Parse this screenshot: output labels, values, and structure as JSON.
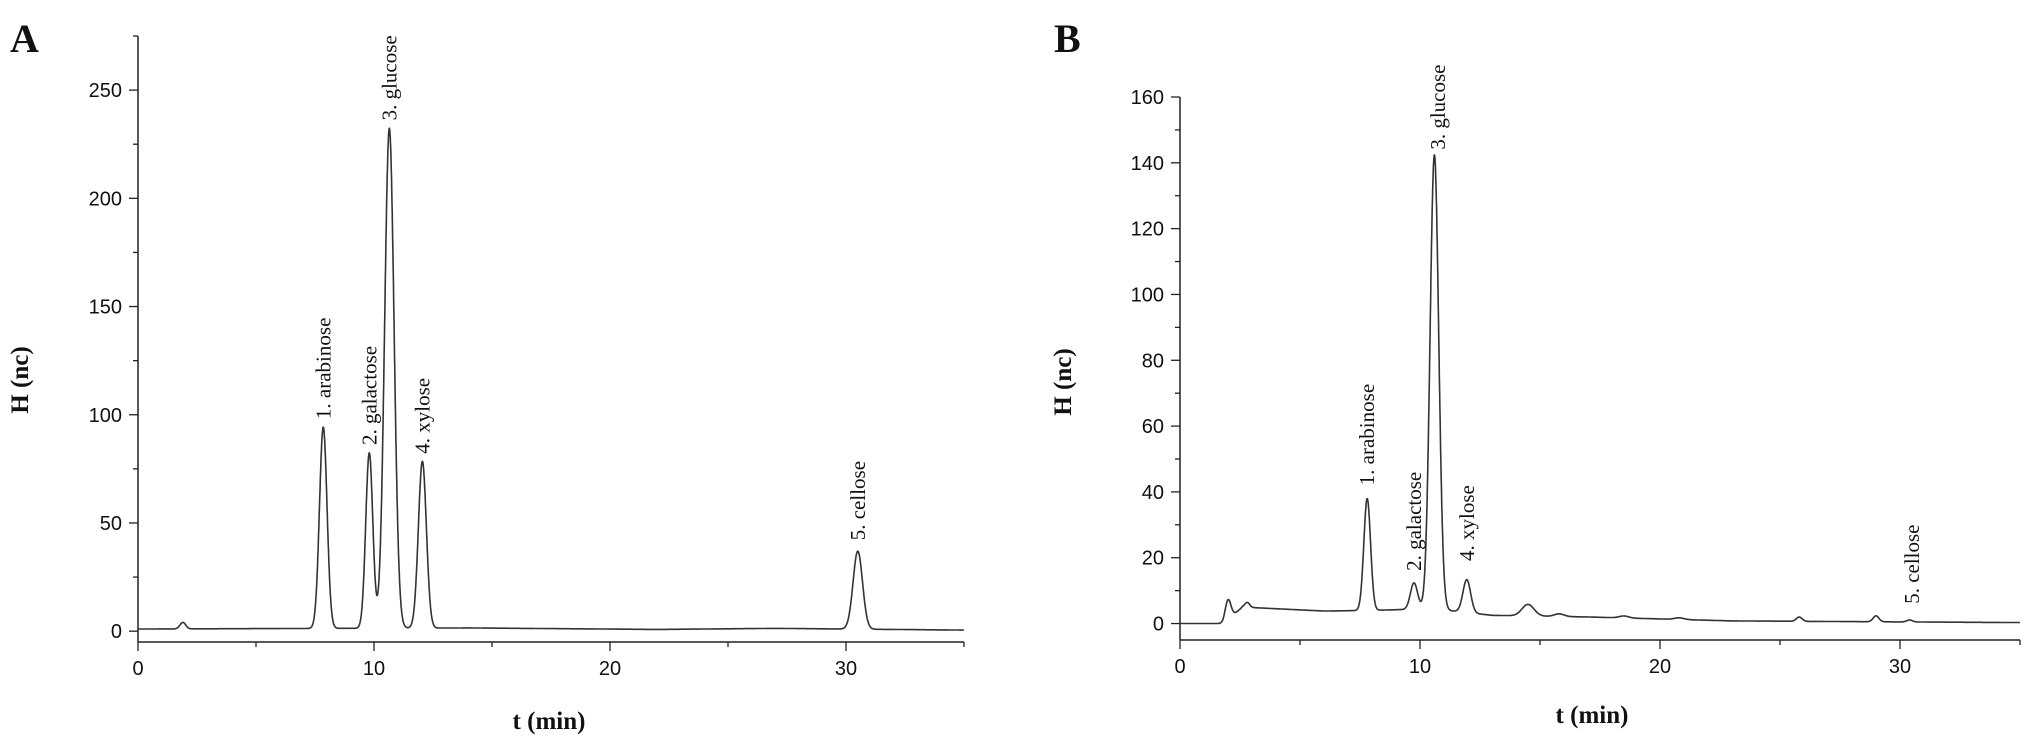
{
  "chart_data": [
    {
      "type": "line",
      "panel": "A",
      "xlabel": "t (min)",
      "ylabel": "H (nc)",
      "xlim": [
        0,
        35
      ],
      "ylim": [
        -5,
        275
      ],
      "xticks": [
        0,
        10,
        20,
        30
      ],
      "yticks": [
        0,
        50,
        100,
        150,
        200,
        250
      ],
      "grid": false,
      "baseline": 1,
      "drift": [
        [
          0,
          1
        ],
        [
          14,
          1.5
        ],
        [
          22,
          0.8
        ],
        [
          27,
          1.3
        ],
        [
          35,
          0.5
        ]
      ],
      "peaks": [
        {
          "t": 1.9,
          "h": 3,
          "w": 0.12
        },
        {
          "t": 7.85,
          "h": 93,
          "w": 0.16
        },
        {
          "t": 9.8,
          "h": 81,
          "w": 0.15
        },
        {
          "t": 10.65,
          "h": 231,
          "w": 0.2
        },
        {
          "t": 12.05,
          "h": 77,
          "w": 0.17
        },
        {
          "t": 30.5,
          "h": 36,
          "w": 0.2
        }
      ],
      "annotations": [
        {
          "text": "1. arabinose",
          "t": 7.85,
          "y": 98
        },
        {
          "text": "2. galactose",
          "t": 9.8,
          "y": 86
        },
        {
          "text": "3. glucose",
          "t": 10.65,
          "y": 236
        },
        {
          "text": "4. xylose",
          "t": 12.05,
          "y": 82
        },
        {
          "text": "5. cellose",
          "t": 30.5,
          "y": 42
        }
      ]
    },
    {
      "type": "line",
      "panel": "B",
      "xlabel": "t (min)",
      "ylabel": "H (nc)",
      "xlim": [
        0,
        35
      ],
      "ylim": [
        -5,
        160
      ],
      "xticks": [
        0,
        10,
        20,
        30
      ],
      "yticks": [
        0,
        20,
        40,
        60,
        80,
        100,
        120,
        140,
        160
      ],
      "grid": false,
      "baseline": 0,
      "drift": [
        [
          0,
          0
        ],
        [
          1.8,
          0
        ],
        [
          2.6,
          5
        ],
        [
          6,
          3.8
        ],
        [
          8,
          4
        ],
        [
          10.5,
          4.5
        ],
        [
          13,
          2.5
        ],
        [
          17,
          2
        ],
        [
          23,
          0.8
        ],
        [
          30,
          0.5
        ],
        [
          35,
          0.3
        ]
      ],
      "peaks": [
        {
          "t": 2.0,
          "h": 6,
          "w": 0.12
        },
        {
          "t": 2.8,
          "h": 1.5,
          "w": 0.1
        },
        {
          "t": 7.8,
          "h": 34,
          "w": 0.14
        },
        {
          "t": 9.75,
          "h": 8,
          "w": 0.15
        },
        {
          "t": 10.6,
          "h": 138,
          "w": 0.18
        },
        {
          "t": 11.95,
          "h": 10,
          "w": 0.16
        },
        {
          "t": 14.5,
          "h": 3.5,
          "w": 0.25
        },
        {
          "t": 15.8,
          "h": 0.8,
          "w": 0.2
        },
        {
          "t": 18.5,
          "h": 0.6,
          "w": 0.2
        },
        {
          "t": 20.8,
          "h": 0.5,
          "w": 0.2
        },
        {
          "t": 25.8,
          "h": 1.3,
          "w": 0.12
        },
        {
          "t": 29.0,
          "h": 1.8,
          "w": 0.12
        },
        {
          "t": 30.4,
          "h": 0.6,
          "w": 0.12
        }
      ],
      "annotations": [
        {
          "text": "1. arabinose",
          "t": 7.8,
          "y": 42
        },
        {
          "text": "2. galactose",
          "t": 9.75,
          "y": 16
        },
        {
          "text": "3. glucose",
          "t": 10.75,
          "y": 144
        },
        {
          "text": "4. xylose",
          "t": 11.95,
          "y": 19
        },
        {
          "text": "5. cellose",
          "t": 30.5,
          "y": 6
        }
      ]
    }
  ]
}
